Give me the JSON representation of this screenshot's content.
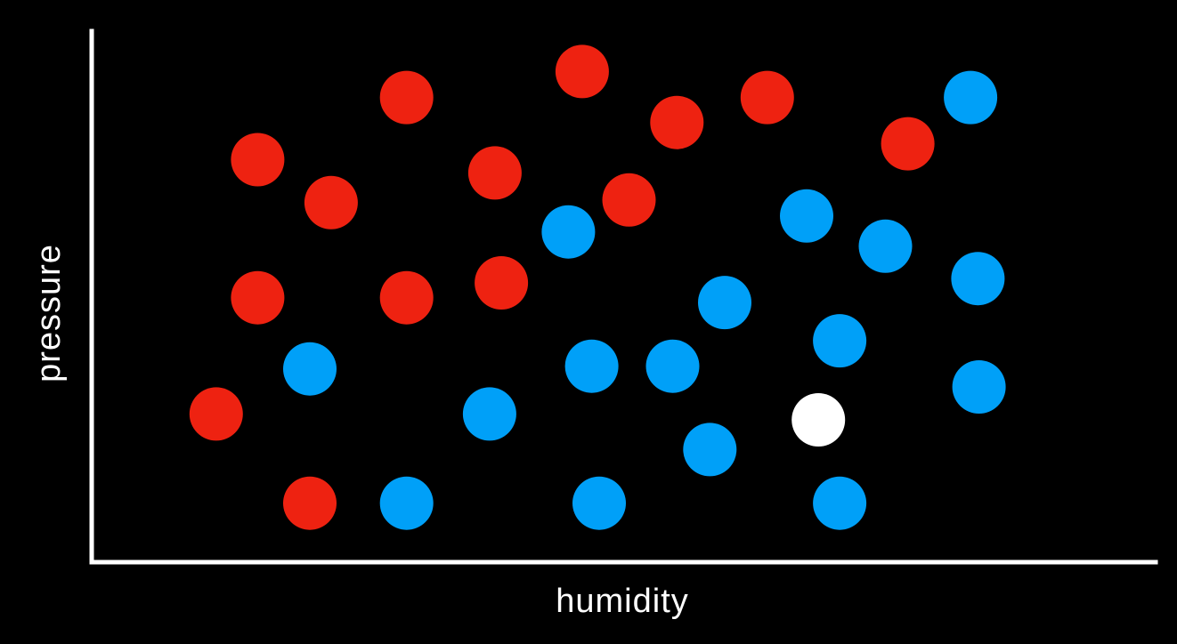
{
  "chart_data": {
    "type": "scatter",
    "title": "",
    "xlabel": "humidity",
    "ylabel": "pressure",
    "xlim": [
      0,
      100
    ],
    "ylim": [
      0,
      100
    ],
    "grid": false,
    "legend": "none",
    "axis_color": "#ffffff",
    "tick_labels": false,
    "series": [
      {
        "color": "#ee2211",
        "points": [
          [
            11.7,
            27.9
          ],
          [
            15.6,
            75.8
          ],
          [
            15.6,
            49.8
          ],
          [
            20.5,
            11.1
          ],
          [
            22.5,
            67.7
          ],
          [
            29.6,
            87.5
          ],
          [
            29.6,
            49.8
          ],
          [
            37.9,
            73.3
          ],
          [
            38.5,
            52.6
          ],
          [
            46.1,
            92.4
          ],
          [
            50.5,
            68.2
          ],
          [
            55.0,
            82.8
          ],
          [
            63.5,
            87.5
          ],
          [
            76.7,
            78.8
          ]
        ]
      },
      {
        "color": "#00a0f8",
        "points": [
          [
            20.5,
            36.4
          ],
          [
            29.6,
            11.1
          ],
          [
            37.4,
            27.9
          ],
          [
            44.8,
            62.2
          ],
          [
            47.0,
            36.9
          ],
          [
            47.7,
            11.1
          ],
          [
            54.6,
            36.9
          ],
          [
            58.1,
            21.2
          ],
          [
            59.5,
            48.9
          ],
          [
            67.2,
            65.2
          ],
          [
            70.3,
            41.7
          ],
          [
            70.3,
            11.1
          ],
          [
            74.6,
            59.5
          ],
          [
            82.6,
            87.5
          ],
          [
            83.3,
            53.4
          ],
          [
            83.4,
            33.0
          ]
        ]
      },
      {
        "color": "#ffffff",
        "points": [
          [
            68.3,
            26.8
          ]
        ]
      }
    ]
  }
}
